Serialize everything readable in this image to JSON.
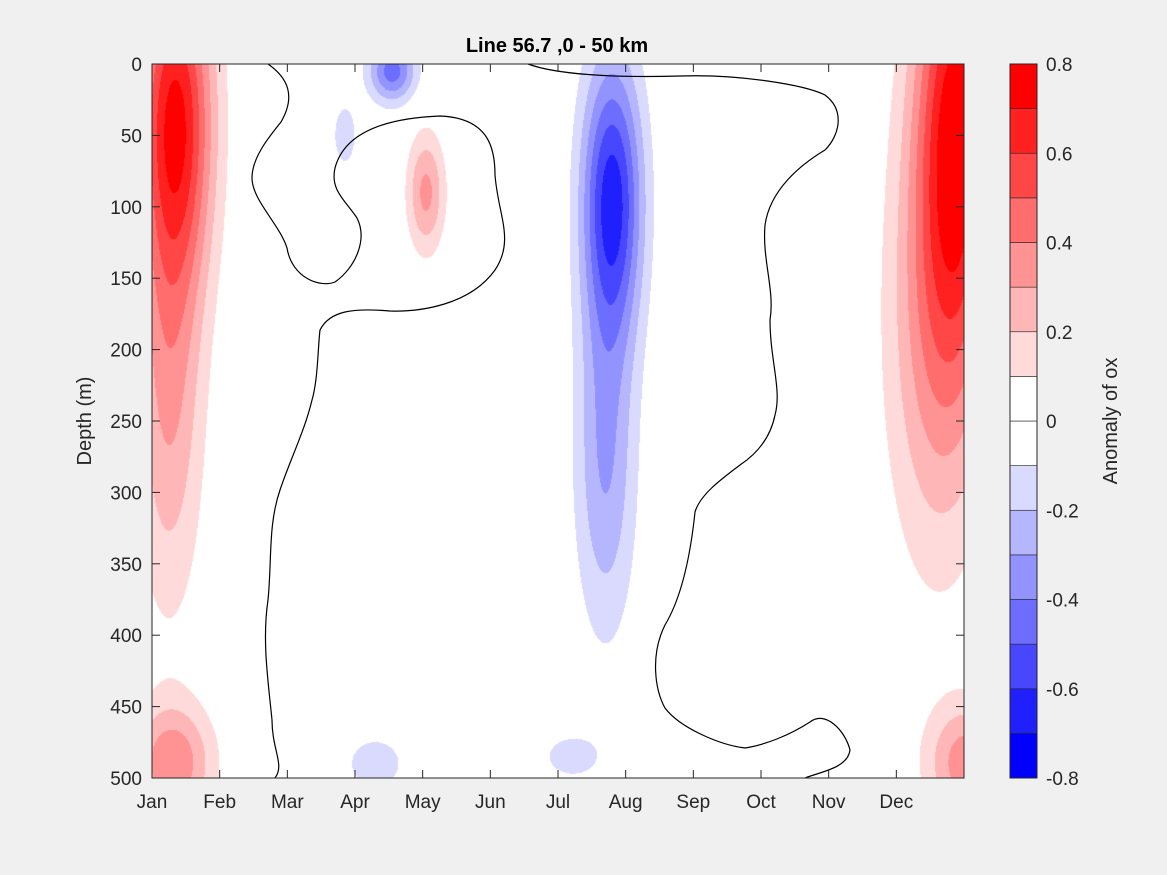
{
  "chart_data": {
    "type": "heatmap",
    "title": "Line 56.7 ,0 - 50 km",
    "ylabel": "Depth (m)",
    "xlabel": "",
    "x_tick_labels": [
      "Jan",
      "Feb",
      "Mar",
      "Apr",
      "May",
      "Jun",
      "Jul",
      "Aug",
      "Sep",
      "Oct",
      "Nov",
      "Dec"
    ],
    "xlim": [
      1,
      13
    ],
    "y_ticks": [
      0,
      50,
      100,
      150,
      200,
      250,
      300,
      350,
      400,
      450,
      500
    ],
    "y_tick_labels": [
      "0",
      "50",
      "100",
      "150",
      "200",
      "250",
      "300",
      "350",
      "400",
      "450",
      "500"
    ],
    "ylim": [
      0,
      500
    ],
    "y_reversed": true,
    "colorbar": {
      "label": "Anomaly of ox",
      "clim": [
        -0.8,
        0.8
      ],
      "levels": [
        -0.8,
        -0.7,
        -0.6,
        -0.5,
        -0.4,
        -0.3,
        -0.2,
        -0.1,
        0,
        0.1,
        0.2,
        0.3,
        0.4,
        0.5,
        0.6,
        0.7,
        0.8
      ],
      "ticks": [
        -0.8,
        -0.6,
        -0.4,
        -0.2,
        0,
        0.2,
        0.4,
        0.6,
        0.8
      ],
      "tick_labels": [
        "-0.8",
        "-0.6",
        "-0.4",
        "-0.2",
        "0",
        "0.2",
        "0.4",
        "0.6",
        "0.8"
      ],
      "colors": [
        "#0000ff",
        "#2020ff",
        "#4747ff",
        "#6d6dff",
        "#9393ff",
        "#b6b6ff",
        "#dadaff",
        "#ffffff",
        "#ffffff",
        "#ffdada",
        "#ffb6b6",
        "#ff9393",
        "#ff6d6d",
        "#ff4747",
        "#ff2020",
        "#ff0000"
      ]
    },
    "features": [
      {
        "sign": "pos",
        "peak": 0.7,
        "month": 1.35,
        "depth": 38,
        "sx": 0.55,
        "sy": 120
      },
      {
        "sign": "pos",
        "peak": 0.3,
        "month": 1.25,
        "depth": 230,
        "sx": 0.5,
        "sy": 150
      },
      {
        "sign": "pos",
        "peak": 0.7,
        "month": 12.9,
        "depth": 40,
        "sx": 0.6,
        "sy": 160
      },
      {
        "sign": "pos",
        "peak": 0.3,
        "month": 12.6,
        "depth": 190,
        "sx": 0.75,
        "sy": 165
      },
      {
        "sign": "pos",
        "peak": 0.33,
        "month": 5.05,
        "depth": 90,
        "sx": 0.28,
        "sy": 42
      },
      {
        "sign": "pos",
        "peak": 0.38,
        "month": 1.3,
        "depth": 490,
        "sx": 0.6,
        "sy": 42
      },
      {
        "sign": "pos",
        "peak": 0.36,
        "month": 13.05,
        "depth": 490,
        "sx": 0.6,
        "sy": 42
      },
      {
        "sign": "neg",
        "peak": 0.65,
        "month": 7.8,
        "depth": 95,
        "sx": 0.45,
        "sy": 100
      },
      {
        "sign": "neg",
        "peak": 0.3,
        "month": 7.7,
        "depth": 280,
        "sx": 0.45,
        "sy": 120
      },
      {
        "sign": "neg",
        "peak": 0.45,
        "month": 4.55,
        "depth": 5,
        "sx": 0.35,
        "sy": 22
      },
      {
        "sign": "neg",
        "peak": 0.15,
        "month": 3.85,
        "depth": 50,
        "sx": 0.22,
        "sy": 28
      },
      {
        "sign": "neg",
        "peak": 0.16,
        "month": 4.3,
        "depth": 490,
        "sx": 0.5,
        "sy": 22
      },
      {
        "sign": "neg",
        "peak": 0.15,
        "month": 7.2,
        "depth": 485,
        "sx": 0.5,
        "sy": 18
      }
    ]
  }
}
